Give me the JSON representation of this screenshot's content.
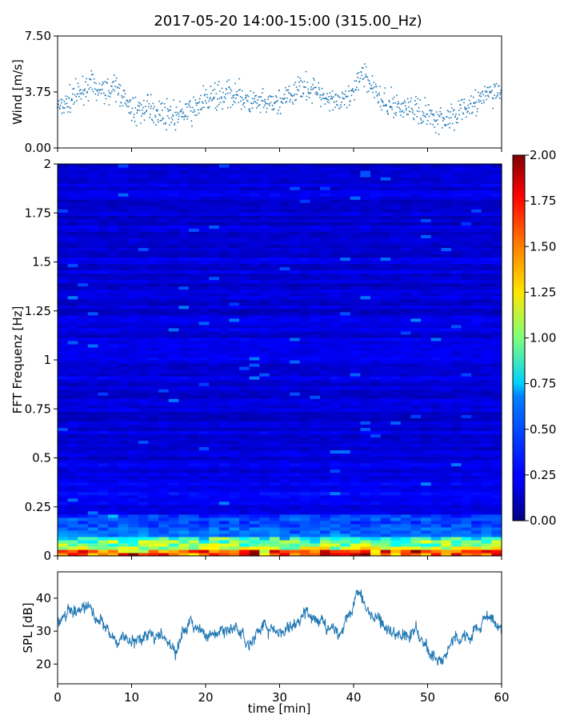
{
  "figure": {
    "title": "2017-05-20 14:00-15:00 (315.00_Hz)"
  },
  "colors": {
    "wind_marker": "#1f77b4",
    "spl_line": "#1f77b4",
    "colormap": "jet"
  },
  "chart_data": [
    {
      "type": "scatter",
      "ylabel": "Wind [m/s]",
      "xlim": [
        0,
        60
      ],
      "ylim": [
        0,
        7.5
      ],
      "yticks": [
        "0.00",
        "3.75",
        "7.50"
      ],
      "grid": false,
      "series": [
        {
          "x": [
            0,
            2,
            4,
            6,
            8,
            10,
            12,
            14,
            16,
            18,
            20,
            22,
            24,
            26,
            28,
            30,
            32,
            33,
            34,
            36,
            38,
            40,
            41,
            42,
            44,
            46,
            48,
            50,
            52,
            54,
            56,
            58,
            60
          ],
          "y": [
            2.8,
            3.3,
            4.2,
            3.9,
            4.0,
            2.5,
            2.6,
            2.4,
            2.1,
            2.4,
            3.3,
            3.4,
            3.7,
            3.0,
            2.9,
            3.1,
            3.5,
            4.4,
            3.9,
            3.6,
            3.0,
            3.4,
            5.3,
            4.6,
            3.0,
            2.8,
            2.6,
            2.3,
            1.9,
            2.4,
            2.8,
            3.6,
            3.9
          ]
        }
      ]
    },
    {
      "type": "heatmap",
      "ylabel": "FFT Frequenz [Hz]",
      "xlim": [
        0,
        60
      ],
      "ylim": [
        0,
        2
      ],
      "yticks": [
        "0",
        "0.25",
        "0.5",
        "0.75",
        "1",
        "1.25",
        "1.5",
        "1.75",
        "2"
      ],
      "colorbar": {
        "range": [
          0,
          2
        ],
        "ticks": [
          "0.00",
          "0.25",
          "0.50",
          "0.75",
          "1.00",
          "1.25",
          "1.50",
          "1.75",
          "2.00"
        ]
      },
      "notes": "Intensity highest below ~0.1 Hz (values ~1–2), decaying to ~0.1–0.25 above 0.5 Hz."
    },
    {
      "type": "line",
      "ylabel": "SPL [dB]",
      "xlabel": "time [min]",
      "xlim": [
        0,
        60
      ],
      "ylim": [
        14,
        48
      ],
      "xticks": [
        "0",
        "10",
        "20",
        "30",
        "40",
        "50",
        "60"
      ],
      "yticks": [
        "20",
        "30",
        "40"
      ],
      "series": [
        {
          "x": [
            0,
            2,
            4,
            6,
            8,
            10,
            12,
            14,
            16,
            18,
            20,
            22,
            24,
            26,
            28,
            30,
            32,
            34,
            36,
            38,
            40,
            41,
            42,
            44,
            46,
            48,
            50,
            52,
            54,
            56,
            58,
            60
          ],
          "y": [
            32,
            36,
            37,
            32,
            27,
            28,
            30,
            29,
            24,
            34,
            29,
            30,
            31,
            26,
            32,
            29,
            33,
            35,
            33,
            29,
            39,
            42,
            37,
            33,
            29,
            30,
            24,
            20,
            28,
            29,
            35,
            31
          ]
        }
      ]
    }
  ]
}
